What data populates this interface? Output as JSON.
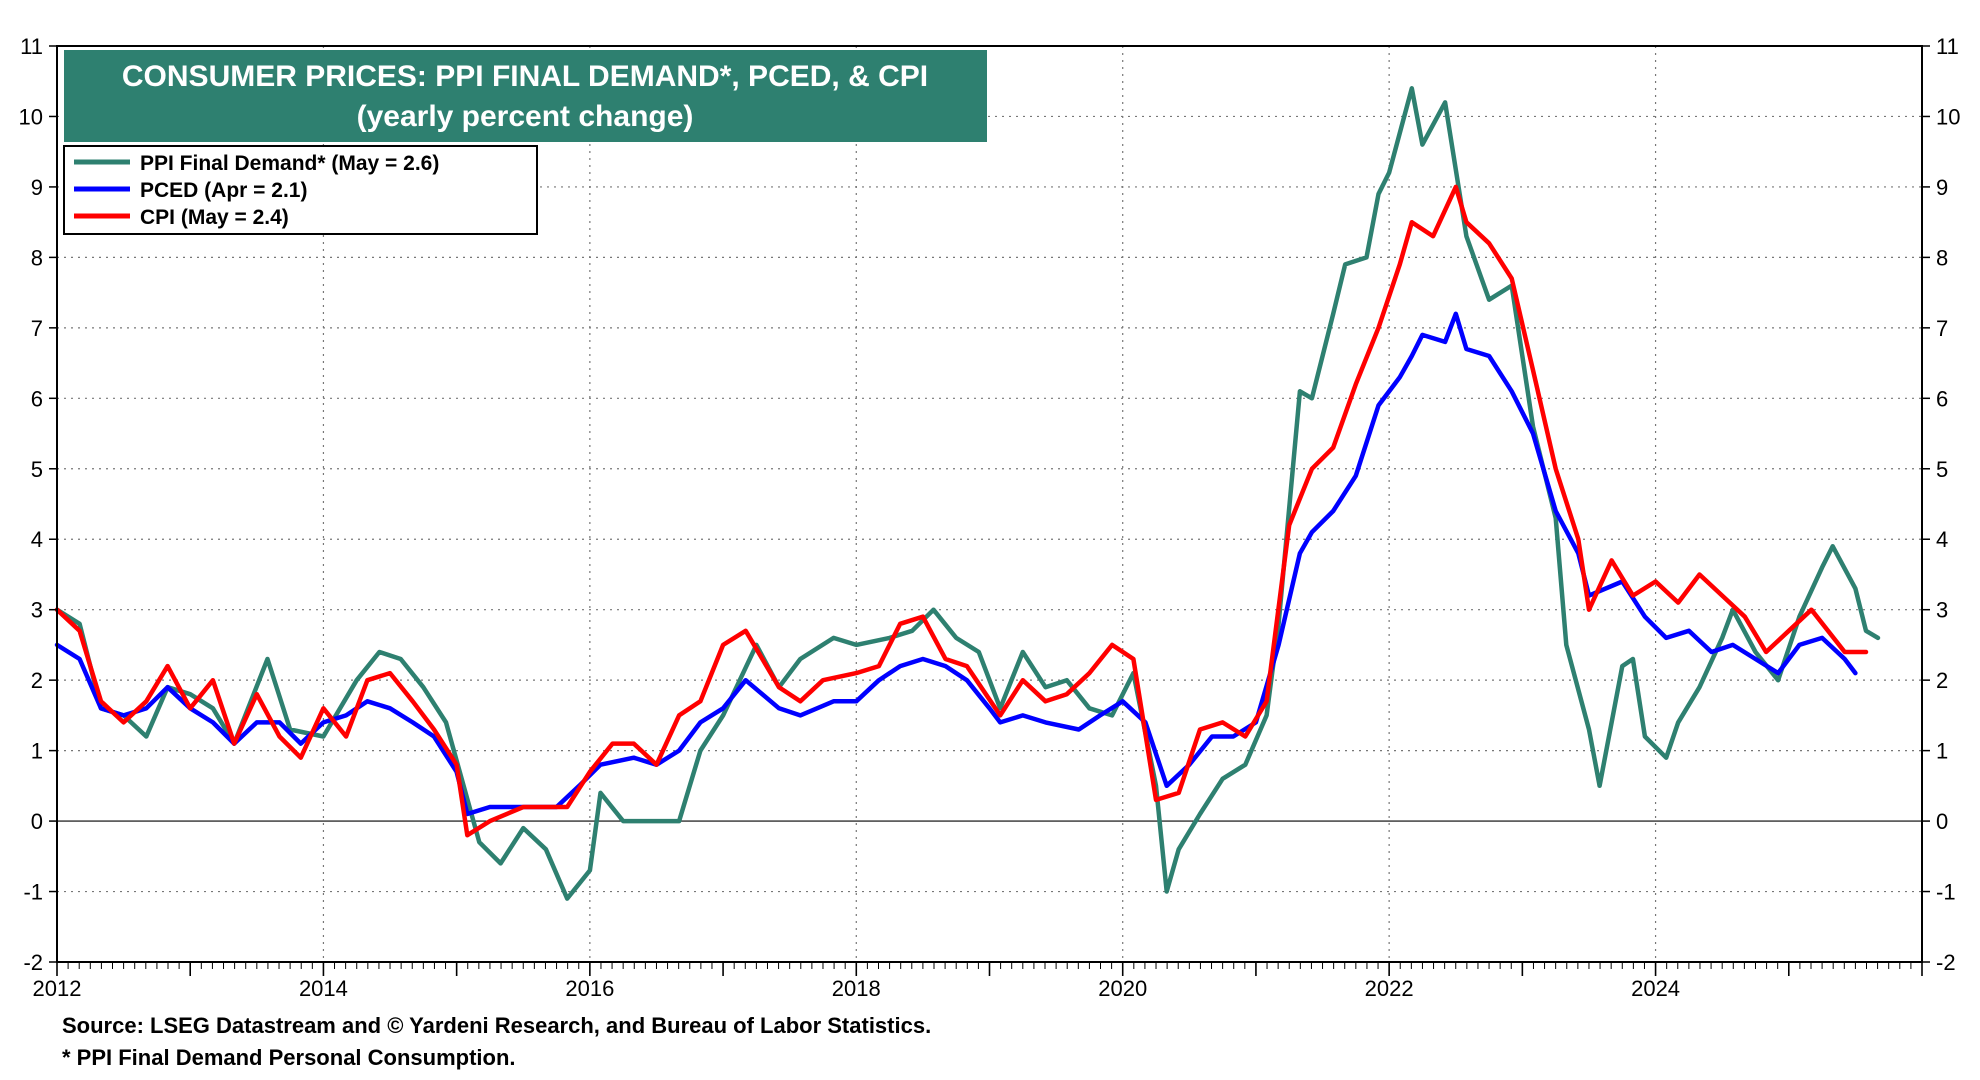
{
  "chart_data": {
    "type": "line",
    "title": "CONSUMER PRICES: PPI FINAL DEMAND*, PCED, & CPI",
    "subtitle": "(yearly percent change)",
    "xlabel": "",
    "ylabel": "",
    "xlim": [
      2012,
      2026
    ],
    "ylim": [
      -2,
      11
    ],
    "y_ticks": [
      -2,
      -1,
      0,
      1,
      2,
      3,
      4,
      5,
      6,
      7,
      8,
      9,
      10,
      11
    ],
    "x_ticks": [
      "2012",
      "2014",
      "2016",
      "2018",
      "2020",
      "2022",
      "2024"
    ],
    "grid": true,
    "legend_position": "top-left",
    "series": [
      {
        "name": "PPI Final Demand* (May = 2.6)",
        "color": "#2e8070",
        "points": [
          [
            2012.0,
            3.0
          ],
          [
            2012.17,
            2.8
          ],
          [
            2012.33,
            1.6
          ],
          [
            2012.5,
            1.5
          ],
          [
            2012.67,
            1.2
          ],
          [
            2012.83,
            1.9
          ],
          [
            2013.0,
            1.8
          ],
          [
            2013.17,
            1.6
          ],
          [
            2013.33,
            1.1
          ],
          [
            2013.58,
            2.3
          ],
          [
            2013.75,
            1.3
          ],
          [
            2014.0,
            1.2
          ],
          [
            2014.25,
            2.0
          ],
          [
            2014.42,
            2.4
          ],
          [
            2014.58,
            2.3
          ],
          [
            2014.75,
            1.9
          ],
          [
            2014.92,
            1.4
          ],
          [
            2015.17,
            -0.3
          ],
          [
            2015.33,
            -0.6
          ],
          [
            2015.5,
            -0.1
          ],
          [
            2015.67,
            -0.4
          ],
          [
            2015.83,
            -1.1
          ],
          [
            2016.0,
            -0.7
          ],
          [
            2016.08,
            0.4
          ],
          [
            2016.25,
            0.0
          ],
          [
            2016.5,
            0.0
          ],
          [
            2016.67,
            0.0
          ],
          [
            2016.83,
            1.0
          ],
          [
            2017.0,
            1.5
          ],
          [
            2017.25,
            2.5
          ],
          [
            2017.42,
            1.9
          ],
          [
            2017.58,
            2.3
          ],
          [
            2017.83,
            2.6
          ],
          [
            2018.0,
            2.5
          ],
          [
            2018.25,
            2.6
          ],
          [
            2018.42,
            2.7
          ],
          [
            2018.58,
            3.0
          ],
          [
            2018.75,
            2.6
          ],
          [
            2018.92,
            2.4
          ],
          [
            2019.08,
            1.6
          ],
          [
            2019.25,
            2.4
          ],
          [
            2019.42,
            1.9
          ],
          [
            2019.58,
            2.0
          ],
          [
            2019.75,
            1.6
          ],
          [
            2019.92,
            1.5
          ],
          [
            2020.08,
            2.1
          ],
          [
            2020.25,
            0.5
          ],
          [
            2020.33,
            -1.0
          ],
          [
            2020.42,
            -0.4
          ],
          [
            2020.58,
            0.1
          ],
          [
            2020.75,
            0.6
          ],
          [
            2020.92,
            0.8
          ],
          [
            2021.08,
            1.5
          ],
          [
            2021.17,
            2.8
          ],
          [
            2021.33,
            6.1
          ],
          [
            2021.42,
            6.0
          ],
          [
            2021.58,
            7.2
          ],
          [
            2021.67,
            7.9
          ],
          [
            2021.83,
            8.0
          ],
          [
            2021.92,
            8.9
          ],
          [
            2022.0,
            9.2
          ],
          [
            2022.17,
            10.4
          ],
          [
            2022.25,
            9.6
          ],
          [
            2022.42,
            10.2
          ],
          [
            2022.58,
            8.3
          ],
          [
            2022.75,
            7.4
          ],
          [
            2022.92,
            7.6
          ],
          [
            2023.08,
            5.6
          ],
          [
            2023.25,
            4.3
          ],
          [
            2023.33,
            2.5
          ],
          [
            2023.5,
            1.3
          ],
          [
            2023.58,
            0.5
          ],
          [
            2023.75,
            2.2
          ],
          [
            2023.83,
            2.3
          ],
          [
            2023.92,
            1.2
          ],
          [
            2024.08,
            0.9
          ],
          [
            2024.17,
            1.4
          ],
          [
            2024.33,
            1.9
          ],
          [
            2024.5,
            2.6
          ],
          [
            2024.58,
            3.0
          ],
          [
            2024.75,
            2.4
          ],
          [
            2024.92,
            2.0
          ],
          [
            2025.08,
            2.9
          ],
          [
            2025.25,
            3.6
          ],
          [
            2025.33,
            3.9
          ],
          [
            2025.5,
            3.3
          ],
          [
            2025.58,
            2.7
          ],
          [
            2025.67,
            2.6
          ]
        ]
      },
      {
        "name": "PCED (Apr = 2.1)",
        "color": "#0000ff",
        "points": [
          [
            2012.0,
            2.5
          ],
          [
            2012.17,
            2.3
          ],
          [
            2012.33,
            1.6
          ],
          [
            2012.5,
            1.5
          ],
          [
            2012.67,
            1.6
          ],
          [
            2012.83,
            1.9
          ],
          [
            2013.0,
            1.6
          ],
          [
            2013.17,
            1.4
          ],
          [
            2013.33,
            1.1
          ],
          [
            2013.5,
            1.4
          ],
          [
            2013.67,
            1.4
          ],
          [
            2013.83,
            1.1
          ],
          [
            2014.0,
            1.4
          ],
          [
            2014.17,
            1.5
          ],
          [
            2014.33,
            1.7
          ],
          [
            2014.5,
            1.6
          ],
          [
            2014.67,
            1.4
          ],
          [
            2014.83,
            1.2
          ],
          [
            2015.0,
            0.7
          ],
          [
            2015.08,
            0.1
          ],
          [
            2015.25,
            0.2
          ],
          [
            2015.5,
            0.2
          ],
          [
            2015.75,
            0.2
          ],
          [
            2015.92,
            0.5
          ],
          [
            2016.08,
            0.8
          ],
          [
            2016.33,
            0.9
          ],
          [
            2016.5,
            0.8
          ],
          [
            2016.67,
            1.0
          ],
          [
            2016.83,
            1.4
          ],
          [
            2017.0,
            1.6
          ],
          [
            2017.17,
            2.0
          ],
          [
            2017.42,
            1.6
          ],
          [
            2017.58,
            1.5
          ],
          [
            2017.83,
            1.7
          ],
          [
            2018.0,
            1.7
          ],
          [
            2018.17,
            2.0
          ],
          [
            2018.33,
            2.2
          ],
          [
            2018.5,
            2.3
          ],
          [
            2018.67,
            2.2
          ],
          [
            2018.83,
            2.0
          ],
          [
            2019.0,
            1.6
          ],
          [
            2019.08,
            1.4
          ],
          [
            2019.25,
            1.5
          ],
          [
            2019.42,
            1.4
          ],
          [
            2019.67,
            1.3
          ],
          [
            2019.83,
            1.5
          ],
          [
            2020.0,
            1.7
          ],
          [
            2020.17,
            1.4
          ],
          [
            2020.33,
            0.5
          ],
          [
            2020.5,
            0.8
          ],
          [
            2020.67,
            1.2
          ],
          [
            2020.83,
            1.2
          ],
          [
            2021.0,
            1.4
          ],
          [
            2021.17,
            2.5
          ],
          [
            2021.33,
            3.8
          ],
          [
            2021.42,
            4.1
          ],
          [
            2021.58,
            4.4
          ],
          [
            2021.75,
            4.9
          ],
          [
            2021.92,
            5.9
          ],
          [
            2022.08,
            6.3
          ],
          [
            2022.17,
            6.6
          ],
          [
            2022.25,
            6.9
          ],
          [
            2022.42,
            6.8
          ],
          [
            2022.5,
            7.2
          ],
          [
            2022.58,
            6.7
          ],
          [
            2022.75,
            6.6
          ],
          [
            2022.92,
            6.1
          ],
          [
            2023.08,
            5.5
          ],
          [
            2023.25,
            4.4
          ],
          [
            2023.42,
            3.8
          ],
          [
            2023.5,
            3.2
          ],
          [
            2023.75,
            3.4
          ],
          [
            2023.92,
            2.9
          ],
          [
            2024.08,
            2.6
          ],
          [
            2024.25,
            2.7
          ],
          [
            2024.42,
            2.4
          ],
          [
            2024.58,
            2.5
          ],
          [
            2024.75,
            2.3
          ],
          [
            2024.92,
            2.1
          ],
          [
            2025.08,
            2.5
          ],
          [
            2025.25,
            2.6
          ],
          [
            2025.42,
            2.3
          ],
          [
            2025.5,
            2.1
          ]
        ]
      },
      {
        "name": "CPI (May = 2.4)",
        "color": "#ff0000",
        "points": [
          [
            2012.0,
            3.0
          ],
          [
            2012.17,
            2.7
          ],
          [
            2012.33,
            1.7
          ],
          [
            2012.5,
            1.4
          ],
          [
            2012.67,
            1.7
          ],
          [
            2012.83,
            2.2
          ],
          [
            2013.0,
            1.6
          ],
          [
            2013.17,
            2.0
          ],
          [
            2013.33,
            1.1
          ],
          [
            2013.5,
            1.8
          ],
          [
            2013.67,
            1.2
          ],
          [
            2013.83,
            0.9
          ],
          [
            2014.0,
            1.6
          ],
          [
            2014.17,
            1.2
          ],
          [
            2014.33,
            2.0
          ],
          [
            2014.5,
            2.1
          ],
          [
            2014.67,
            1.7
          ],
          [
            2014.83,
            1.3
          ],
          [
            2015.0,
            0.8
          ],
          [
            2015.08,
            -0.2
          ],
          [
            2015.25,
            0.0
          ],
          [
            2015.5,
            0.2
          ],
          [
            2015.67,
            0.2
          ],
          [
            2015.83,
            0.2
          ],
          [
            2016.0,
            0.7
          ],
          [
            2016.17,
            1.1
          ],
          [
            2016.33,
            1.1
          ],
          [
            2016.5,
            0.8
          ],
          [
            2016.67,
            1.5
          ],
          [
            2016.83,
            1.7
          ],
          [
            2017.0,
            2.5
          ],
          [
            2017.17,
            2.7
          ],
          [
            2017.42,
            1.9
          ],
          [
            2017.58,
            1.7
          ],
          [
            2017.75,
            2.0
          ],
          [
            2018.0,
            2.1
          ],
          [
            2018.17,
            2.2
          ],
          [
            2018.33,
            2.8
          ],
          [
            2018.5,
            2.9
          ],
          [
            2018.67,
            2.3
          ],
          [
            2018.83,
            2.2
          ],
          [
            2019.08,
            1.5
          ],
          [
            2019.25,
            2.0
          ],
          [
            2019.42,
            1.7
          ],
          [
            2019.58,
            1.8
          ],
          [
            2019.75,
            2.1
          ],
          [
            2019.92,
            2.5
          ],
          [
            2020.08,
            2.3
          ],
          [
            2020.25,
            0.3
          ],
          [
            2020.42,
            0.4
          ],
          [
            2020.58,
            1.3
          ],
          [
            2020.75,
            1.4
          ],
          [
            2020.92,
            1.2
          ],
          [
            2021.08,
            1.7
          ],
          [
            2021.25,
            4.2
          ],
          [
            2021.42,
            5.0
          ],
          [
            2021.58,
            5.3
          ],
          [
            2021.75,
            6.2
          ],
          [
            2021.92,
            7.0
          ],
          [
            2022.08,
            7.9
          ],
          [
            2022.17,
            8.5
          ],
          [
            2022.33,
            8.3
          ],
          [
            2022.5,
            9.0
          ],
          [
            2022.58,
            8.5
          ],
          [
            2022.75,
            8.2
          ],
          [
            2022.92,
            7.7
          ],
          [
            2023.08,
            6.4
          ],
          [
            2023.25,
            5.0
          ],
          [
            2023.42,
            4.0
          ],
          [
            2023.5,
            3.0
          ],
          [
            2023.67,
            3.7
          ],
          [
            2023.83,
            3.2
          ],
          [
            2024.0,
            3.4
          ],
          [
            2024.17,
            3.1
          ],
          [
            2024.33,
            3.5
          ],
          [
            2024.5,
            3.2
          ],
          [
            2024.67,
            2.9
          ],
          [
            2024.83,
            2.4
          ],
          [
            2025.0,
            2.7
          ],
          [
            2025.17,
            3.0
          ],
          [
            2025.42,
            2.4
          ],
          [
            2025.58,
            2.4
          ]
        ]
      }
    ]
  },
  "footer": {
    "source": "Source: LSEG Datastream and © Yardeni Research, and Bureau of Labor Statistics.",
    "note": "* PPI Final Demand Personal Consumption."
  }
}
